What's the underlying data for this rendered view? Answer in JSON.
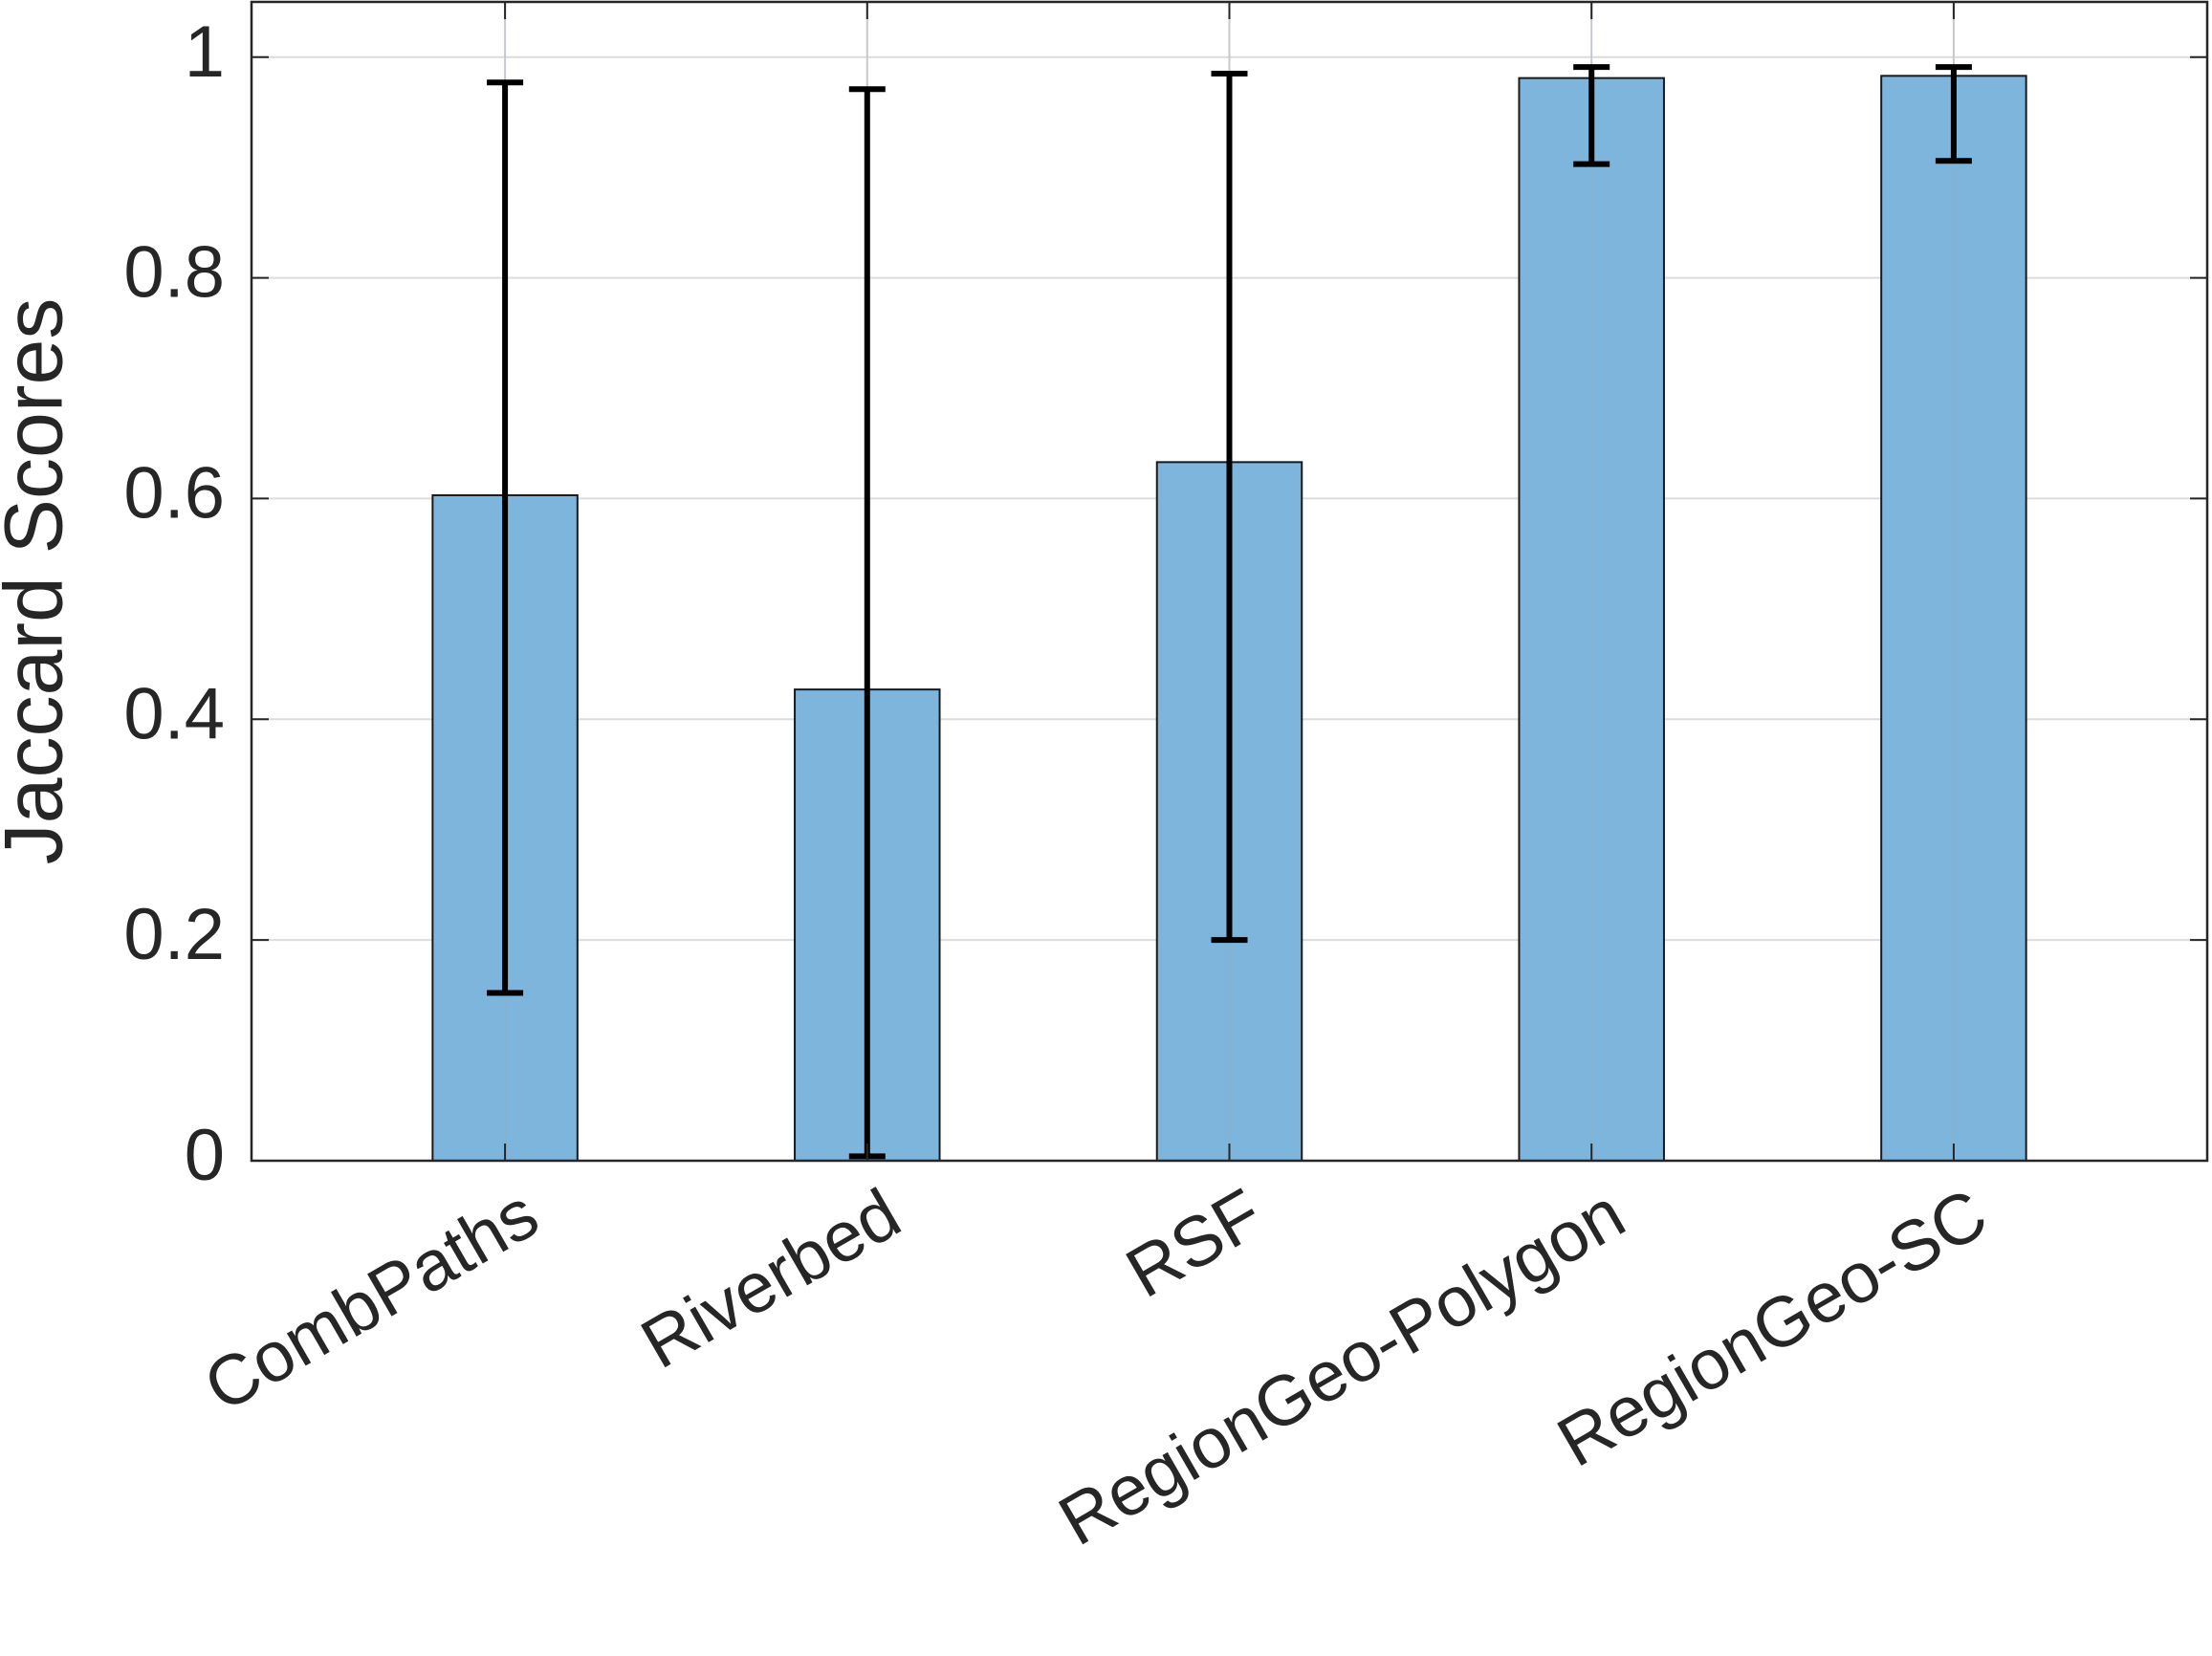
{
  "chart_data": {
    "type": "bar",
    "y_label": "Jaccard Scores",
    "categories": [
      "CombPaths",
      "Riverbed",
      "RSF",
      "RegionGeo-Polygon",
      "RegionGeo-SC"
    ],
    "values": [
      0.603,
      0.427,
      0.633,
      0.981,
      0.983
    ],
    "error_minus": [
      0.451,
      0.423,
      0.433,
      0.078,
      0.077
    ],
    "error_plus": [
      0.374,
      0.544,
      0.352,
      0.01,
      0.008
    ],
    "color": "#7eb5dd",
    "ylim": [
      0,
      1.05
    ],
    "yticks": [
      0,
      0.2,
      0.4,
      0.6,
      0.8,
      1
    ],
    "grid": true
  }
}
